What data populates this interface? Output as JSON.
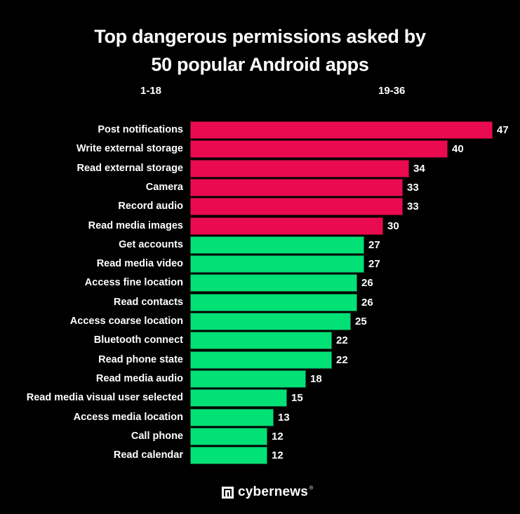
{
  "title": {
    "line1": "Top dangerous permissions asked by",
    "line2": "50 popular Android apps"
  },
  "ranges": {
    "left": "1-18",
    "right": "19-36"
  },
  "colors": {
    "background": "#000000",
    "red": "#ea0a4f",
    "green": "#02e175",
    "text": "#ffffff"
  },
  "brand": {
    "name": "cybernews",
    "registered": "®"
  },
  "chart_data": {
    "type": "bar",
    "orientation": "horizontal",
    "title": "Top dangerous permissions asked by 50 popular Android apps",
    "xlabel": "",
    "ylabel": "",
    "grid": false,
    "legend": null,
    "annotations": [
      "1-18",
      "19-36"
    ],
    "categories": [
      "Post notifications",
      "Write external storage",
      "Read external storage",
      "Camera",
      "Record audio",
      "Read media images",
      "Get accounts",
      "Read media video",
      "Access fine location",
      "Read contacts",
      "Access coarse location",
      "Bluetooth connect",
      "Read phone state",
      "Read media audio",
      "Read media visual user selected",
      "Access media location",
      "Call phone",
      "Read calendar"
    ],
    "values": [
      47,
      40,
      34,
      33,
      33,
      30,
      27,
      27,
      26,
      26,
      25,
      22,
      22,
      18,
      15,
      13,
      12,
      12
    ],
    "bar_colors": [
      "red",
      "red",
      "red",
      "red",
      "red",
      "red",
      "green",
      "green",
      "green",
      "green",
      "green",
      "green",
      "green",
      "green",
      "green",
      "green",
      "green",
      "green"
    ],
    "xlim": [
      0,
      47
    ]
  }
}
